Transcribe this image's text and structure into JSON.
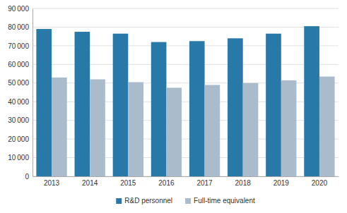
{
  "chart_data": {
    "type": "bar",
    "categories": [
      "2013",
      "2014",
      "2015",
      "2016",
      "2017",
      "2018",
      "2019",
      "2020"
    ],
    "series": [
      {
        "name": "R&D personnel",
        "color": "#2878a8",
        "values": [
          79000,
          77500,
          76500,
          72000,
          72500,
          74000,
          76500,
          80500
        ]
      },
      {
        "name": "Full-time equivalent",
        "color": "#aabccc",
        "values": [
          53000,
          52000,
          50500,
          47500,
          49000,
          50000,
          51500,
          53500
        ]
      }
    ],
    "ylim": [
      0,
      90000
    ],
    "yticks": [
      0,
      {
        "value": 10000,
        "label": "10 000"
      },
      {
        "value": 20000,
        "label": "20 000"
      },
      {
        "value": 30000,
        "label": "30 000"
      },
      {
        "value": 40000,
        "label": "40 000"
      },
      {
        "value": 50000,
        "label": "50 000"
      },
      {
        "value": 60000,
        "label": "60 000"
      },
      {
        "value": 70000,
        "label": "70 000"
      },
      {
        "value": 80000,
        "label": "80 000"
      },
      {
        "value": 90000,
        "label": "90 000"
      }
    ],
    "grid": true,
    "legend": "bottom"
  }
}
